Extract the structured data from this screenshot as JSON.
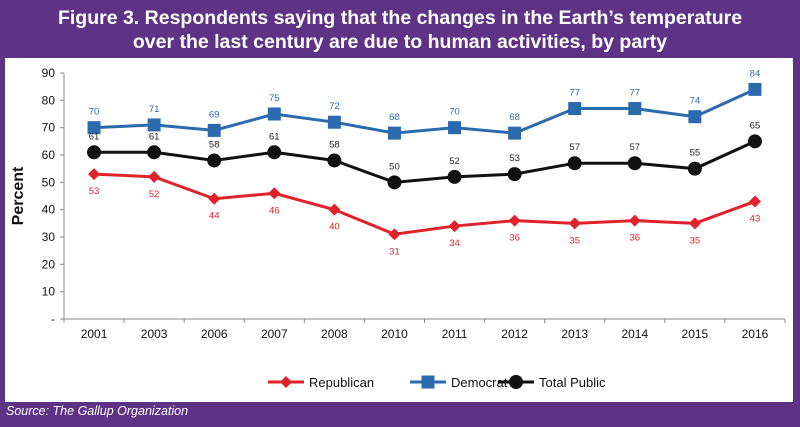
{
  "title_line1": "Figure 3. Respondents saying that the changes in the Earth’s temperature",
  "title_line2": "over the last century are due to human activities, by party",
  "source": "Source:  The Gallup Organization",
  "chart_data": {
    "type": "line",
    "title": "Figure 3. Respondents saying that the changes in the Earth’s temperature over the last century are due to human activities, by party",
    "xlabel": "",
    "ylabel": "Percent",
    "ylim": [
      0,
      90
    ],
    "yticks": [
      "-",
      "10",
      "20",
      "30",
      "40",
      "50",
      "60",
      "70",
      "80",
      "90"
    ],
    "grid": false,
    "legend": "bottom",
    "categories": [
      "2001",
      "2003",
      "2006",
      "2007",
      "2008",
      "2010",
      "2011",
      "2012",
      "2013",
      "2014",
      "2015",
      "2016"
    ],
    "series": [
      {
        "name": "Republican",
        "color": "#e0232b",
        "marker": "diamond",
        "label_position": "below",
        "values": [
          53,
          52,
          44,
          46,
          40,
          31,
          34,
          36,
          35,
          36,
          35,
          43
        ]
      },
      {
        "name": "Democrat",
        "color": "#2a6aad",
        "marker": "square",
        "label_position": "above",
        "values": [
          70,
          71,
          69,
          75,
          72,
          68,
          70,
          68,
          77,
          77,
          74,
          84
        ]
      },
      {
        "name": "Total Public",
        "color": "#111111",
        "marker": "circle",
        "label_position": "above",
        "values": [
          61,
          61,
          58,
          61,
          58,
          50,
          52,
          53,
          57,
          57,
          55,
          65
        ]
      }
    ]
  }
}
